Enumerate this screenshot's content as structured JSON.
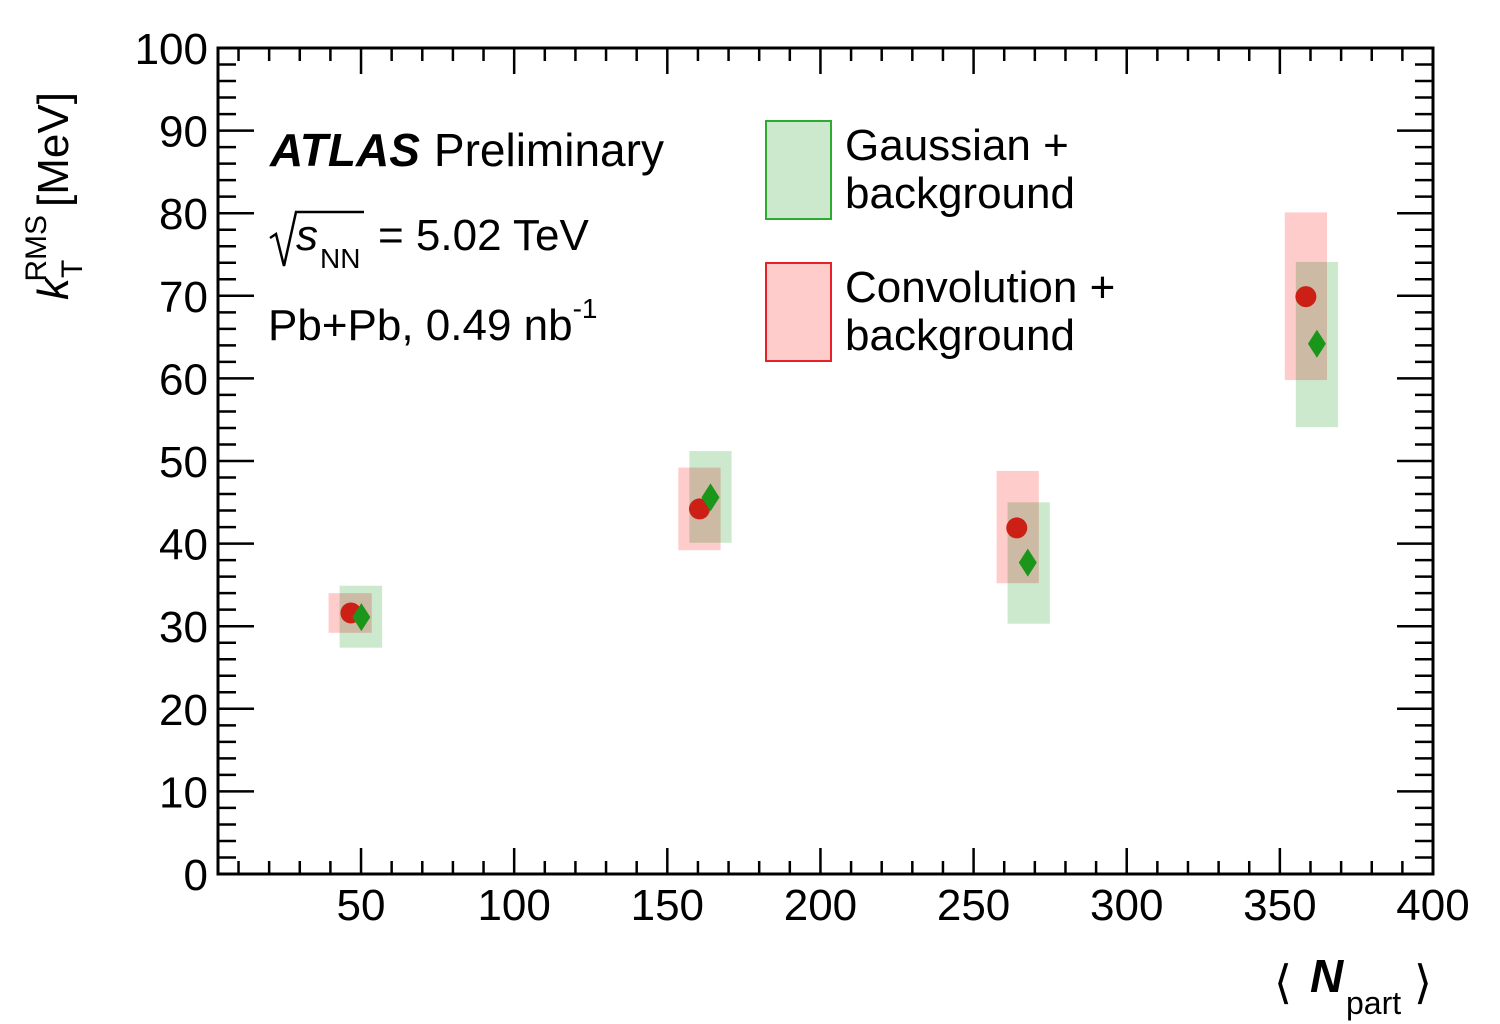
{
  "chart_data": {
    "type": "scatter",
    "xlabel": {
      "main": "N",
      "sub": "part",
      "open": "⟨",
      "close": "⟩"
    },
    "ylabel": {
      "main": "k",
      "sub": "T",
      "sup": "RMS",
      "unit": "[MeV]"
    },
    "xlim": [
      3.3,
      400
    ],
    "ylim": [
      0,
      100
    ],
    "x_ticks": [
      "50",
      "100",
      "150",
      "200",
      "250",
      "300",
      "350",
      "400"
    ],
    "y_ticks": [
      "0",
      "10",
      "20",
      "30",
      "40",
      "50",
      "60",
      "70",
      "80",
      "90",
      "100"
    ],
    "grid": false,
    "legend_placement": "top-center",
    "annotations": {
      "experiment": "ATLAS",
      "status": "Preliminary",
      "energy_sym": "s",
      "energy_sub": "NN",
      "energy_val": "= 5.02 TeV",
      "dataset": "Pb+Pb, 0.49 nb",
      "dataset_sup": "-1"
    },
    "series": [
      {
        "name": "Gaussian + background",
        "legend_lines": [
          "Gaussian +",
          "background"
        ],
        "marker": "diamond",
        "color": "#1a961a",
        "box_color": "#cde9cd",
        "box_edge": "#2eaa2e",
        "points": [
          {
            "x": 50.1,
            "y": 31.1,
            "x_lo": 43.0,
            "x_hi": 56.9,
            "y_lo": 27.4,
            "y_hi": 34.9
          },
          {
            "x": 164.1,
            "y": 45.6,
            "x_lo": 157.2,
            "x_hi": 171.0,
            "y_lo": 40.1,
            "y_hi": 51.2
          },
          {
            "x": 267.7,
            "y": 37.7,
            "x_lo": 261.1,
            "x_hi": 274.9,
            "y_lo": 30.3,
            "y_hi": 45.0
          },
          {
            "x": 362.1,
            "y": 64.2,
            "x_lo": 355.2,
            "x_hi": 369.0,
            "y_lo": 54.1,
            "y_hi": 74.1
          }
        ]
      },
      {
        "name": "Convolution + background",
        "legend_lines": [
          "Convolution +",
          "background"
        ],
        "marker": "circle",
        "color": "#cc2016",
        "box_color": "#ffcccc",
        "box_edge": "#e8202a",
        "points": [
          {
            "x": 46.7,
            "y": 31.6,
            "x_lo": 39.4,
            "x_hi": 53.5,
            "y_lo": 29.2,
            "y_hi": 34.0
          },
          {
            "x": 160.5,
            "y": 44.2,
            "x_lo": 153.6,
            "x_hi": 167.4,
            "y_lo": 39.2,
            "y_hi": 49.2
          },
          {
            "x": 264.1,
            "y": 41.9,
            "x_lo": 257.5,
            "x_hi": 271.3,
            "y_lo": 35.2,
            "y_hi": 48.8
          },
          {
            "x": 358.5,
            "y": 69.9,
            "x_lo": 351.6,
            "x_hi": 365.4,
            "y_lo": 59.8,
            "y_hi": 80.1
          }
        ]
      }
    ]
  }
}
